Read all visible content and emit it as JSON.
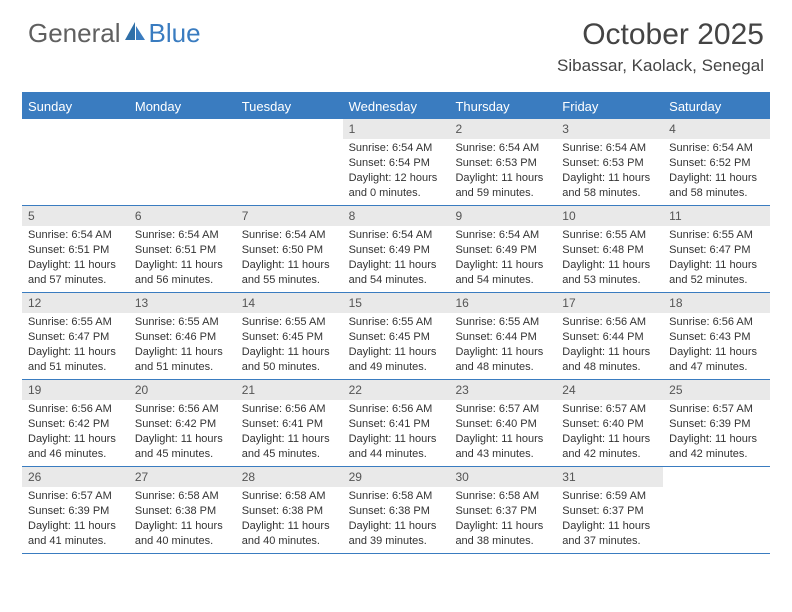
{
  "brand": {
    "part1": "General",
    "part2": "Blue"
  },
  "title": "October 2025",
  "location": "Sibassar, Kaolack, Senegal",
  "colors": {
    "accent": "#3a7cc0",
    "daynum_bg": "#e9e9e9",
    "text": "#333333",
    "header_text": "#ffffff",
    "background": "#ffffff"
  },
  "day_names": [
    "Sunday",
    "Monday",
    "Tuesday",
    "Wednesday",
    "Thursday",
    "Friday",
    "Saturday"
  ],
  "weeks": [
    [
      {
        "n": "",
        "empty": true
      },
      {
        "n": "",
        "empty": true
      },
      {
        "n": "",
        "empty": true
      },
      {
        "n": "1",
        "sunrise": "6:54 AM",
        "sunset": "6:54 PM",
        "dl1": "Daylight: 12 hours",
        "dl2": "and 0 minutes."
      },
      {
        "n": "2",
        "sunrise": "6:54 AM",
        "sunset": "6:53 PM",
        "dl1": "Daylight: 11 hours",
        "dl2": "and 59 minutes."
      },
      {
        "n": "3",
        "sunrise": "6:54 AM",
        "sunset": "6:53 PM",
        "dl1": "Daylight: 11 hours",
        "dl2": "and 58 minutes."
      },
      {
        "n": "4",
        "sunrise": "6:54 AM",
        "sunset": "6:52 PM",
        "dl1": "Daylight: 11 hours",
        "dl2": "and 58 minutes."
      }
    ],
    [
      {
        "n": "5",
        "sunrise": "6:54 AM",
        "sunset": "6:51 PM",
        "dl1": "Daylight: 11 hours",
        "dl2": "and 57 minutes."
      },
      {
        "n": "6",
        "sunrise": "6:54 AM",
        "sunset": "6:51 PM",
        "dl1": "Daylight: 11 hours",
        "dl2": "and 56 minutes."
      },
      {
        "n": "7",
        "sunrise": "6:54 AM",
        "sunset": "6:50 PM",
        "dl1": "Daylight: 11 hours",
        "dl2": "and 55 minutes."
      },
      {
        "n": "8",
        "sunrise": "6:54 AM",
        "sunset": "6:49 PM",
        "dl1": "Daylight: 11 hours",
        "dl2": "and 54 minutes."
      },
      {
        "n": "9",
        "sunrise": "6:54 AM",
        "sunset": "6:49 PM",
        "dl1": "Daylight: 11 hours",
        "dl2": "and 54 minutes."
      },
      {
        "n": "10",
        "sunrise": "6:55 AM",
        "sunset": "6:48 PM",
        "dl1": "Daylight: 11 hours",
        "dl2": "and 53 minutes."
      },
      {
        "n": "11",
        "sunrise": "6:55 AM",
        "sunset": "6:47 PM",
        "dl1": "Daylight: 11 hours",
        "dl2": "and 52 minutes."
      }
    ],
    [
      {
        "n": "12",
        "sunrise": "6:55 AM",
        "sunset": "6:47 PM",
        "dl1": "Daylight: 11 hours",
        "dl2": "and 51 minutes."
      },
      {
        "n": "13",
        "sunrise": "6:55 AM",
        "sunset": "6:46 PM",
        "dl1": "Daylight: 11 hours",
        "dl2": "and 51 minutes."
      },
      {
        "n": "14",
        "sunrise": "6:55 AM",
        "sunset": "6:45 PM",
        "dl1": "Daylight: 11 hours",
        "dl2": "and 50 minutes."
      },
      {
        "n": "15",
        "sunrise": "6:55 AM",
        "sunset": "6:45 PM",
        "dl1": "Daylight: 11 hours",
        "dl2": "and 49 minutes."
      },
      {
        "n": "16",
        "sunrise": "6:55 AM",
        "sunset": "6:44 PM",
        "dl1": "Daylight: 11 hours",
        "dl2": "and 48 minutes."
      },
      {
        "n": "17",
        "sunrise": "6:56 AM",
        "sunset": "6:44 PM",
        "dl1": "Daylight: 11 hours",
        "dl2": "and 48 minutes."
      },
      {
        "n": "18",
        "sunrise": "6:56 AM",
        "sunset": "6:43 PM",
        "dl1": "Daylight: 11 hours",
        "dl2": "and 47 minutes."
      }
    ],
    [
      {
        "n": "19",
        "sunrise": "6:56 AM",
        "sunset": "6:42 PM",
        "dl1": "Daylight: 11 hours",
        "dl2": "and 46 minutes."
      },
      {
        "n": "20",
        "sunrise": "6:56 AM",
        "sunset": "6:42 PM",
        "dl1": "Daylight: 11 hours",
        "dl2": "and 45 minutes."
      },
      {
        "n": "21",
        "sunrise": "6:56 AM",
        "sunset": "6:41 PM",
        "dl1": "Daylight: 11 hours",
        "dl2": "and 45 minutes."
      },
      {
        "n": "22",
        "sunrise": "6:56 AM",
        "sunset": "6:41 PM",
        "dl1": "Daylight: 11 hours",
        "dl2": "and 44 minutes."
      },
      {
        "n": "23",
        "sunrise": "6:57 AM",
        "sunset": "6:40 PM",
        "dl1": "Daylight: 11 hours",
        "dl2": "and 43 minutes."
      },
      {
        "n": "24",
        "sunrise": "6:57 AM",
        "sunset": "6:40 PM",
        "dl1": "Daylight: 11 hours",
        "dl2": "and 42 minutes."
      },
      {
        "n": "25",
        "sunrise": "6:57 AM",
        "sunset": "6:39 PM",
        "dl1": "Daylight: 11 hours",
        "dl2": "and 42 minutes."
      }
    ],
    [
      {
        "n": "26",
        "sunrise": "6:57 AM",
        "sunset": "6:39 PM",
        "dl1": "Daylight: 11 hours",
        "dl2": "and 41 minutes."
      },
      {
        "n": "27",
        "sunrise": "6:58 AM",
        "sunset": "6:38 PM",
        "dl1": "Daylight: 11 hours",
        "dl2": "and 40 minutes."
      },
      {
        "n": "28",
        "sunrise": "6:58 AM",
        "sunset": "6:38 PM",
        "dl1": "Daylight: 11 hours",
        "dl2": "and 40 minutes."
      },
      {
        "n": "29",
        "sunrise": "6:58 AM",
        "sunset": "6:38 PM",
        "dl1": "Daylight: 11 hours",
        "dl2": "and 39 minutes."
      },
      {
        "n": "30",
        "sunrise": "6:58 AM",
        "sunset": "6:37 PM",
        "dl1": "Daylight: 11 hours",
        "dl2": "and 38 minutes."
      },
      {
        "n": "31",
        "sunrise": "6:59 AM",
        "sunset": "6:37 PM",
        "dl1": "Daylight: 11 hours",
        "dl2": "and 37 minutes."
      },
      {
        "n": "",
        "empty": true
      }
    ]
  ],
  "labels": {
    "sunrise": "Sunrise: ",
    "sunset": "Sunset: "
  }
}
